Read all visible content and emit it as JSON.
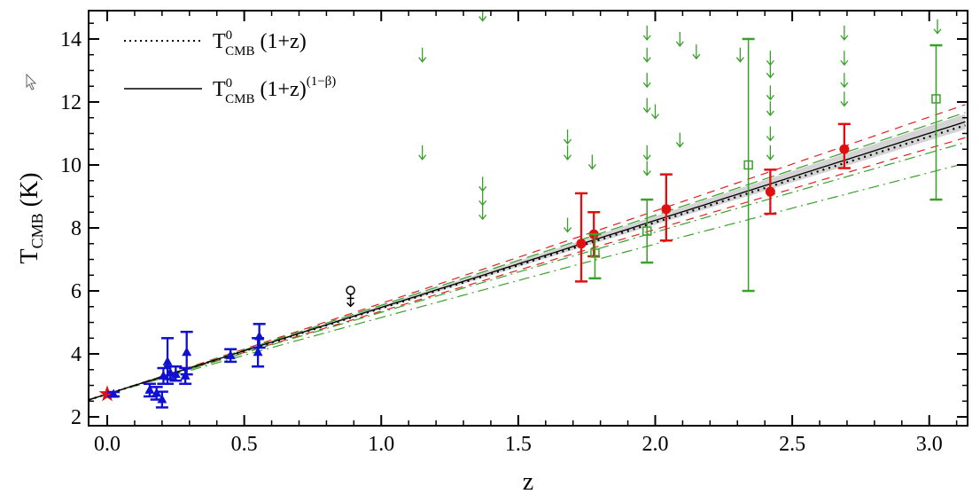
{
  "chart_data": {
    "type": "scatter",
    "xlabel": "z",
    "ylabel": {
      "main": "T",
      "sub": "CMB",
      "unit": " (K)"
    },
    "xlim": [
      -0.068,
      3.14
    ],
    "ylim": [
      1.72,
      14.9
    ],
    "xticks": [
      "0.0",
      "0.5",
      "1.0",
      "1.5",
      "2.0",
      "2.5",
      "3.0"
    ],
    "xtick_values": [
      0,
      0.5,
      1,
      1.5,
      2,
      2.5,
      3
    ],
    "yticks": [
      "2",
      "4",
      "6",
      "8",
      "10",
      "12",
      "14"
    ],
    "ytick_values": [
      2,
      4,
      6,
      8,
      10,
      12,
      14
    ],
    "grid": false,
    "legend_placement": "top-left",
    "legend": [
      {
        "style": "dotted",
        "T": "T",
        "sup": "0",
        "sub": "CMB",
        "expr": " (1+z)",
        "exp": ""
      },
      {
        "style": "solid",
        "T": "T",
        "sup": "0",
        "sub": "CMB",
        "expr": " (1+z)",
        "exp": "(1−β)"
      }
    ],
    "T0": 2.725,
    "beta_fit": -0.007,
    "lines": [
      {
        "kind": "band",
        "beta_low": -0.022,
        "beta_high": 0.008,
        "color": "#c8c8c8"
      },
      {
        "kind": "dashed",
        "beta": -0.04,
        "color": "#e02020"
      },
      {
        "kind": "dashed",
        "beta": 0.025,
        "color": "#e02020"
      },
      {
        "kind": "longdash",
        "beta": -0.025,
        "color": "#3aa02a"
      },
      {
        "kind": "dashdot",
        "beta": 0.035,
        "color": "#3aa02a"
      },
      {
        "kind": "dashdot",
        "beta": 0.08,
        "color": "#3aa02a"
      }
    ],
    "series": [
      {
        "marker": "star",
        "color": "#e01010",
        "points": [
          {
            "x": 0.0,
            "y": 2.725,
            "lo": 2.725,
            "hi": 2.725
          }
        ]
      },
      {
        "marker": "triangle",
        "color": "#1010d0",
        "points": [
          {
            "x": 0.023,
            "y": 2.72,
            "lo": 2.65,
            "hi": 2.79
          },
          {
            "x": 0.155,
            "y": 2.85,
            "lo": 2.65,
            "hi": 3.05
          },
          {
            "x": 0.18,
            "y": 2.75,
            "lo": 2.55,
            "hi": 2.95
          },
          {
            "x": 0.2,
            "y": 2.55,
            "lo": 2.3,
            "hi": 2.8
          },
          {
            "x": 0.205,
            "y": 3.3,
            "lo": 3.05,
            "hi": 3.55
          },
          {
            "x": 0.22,
            "y": 3.75,
            "lo": 3.05,
            "hi": 4.5
          },
          {
            "x": 0.23,
            "y": 3.4,
            "lo": 3.2,
            "hi": 3.6
          },
          {
            "x": 0.25,
            "y": 3.35,
            "lo": 3.15,
            "hi": 3.6
          },
          {
            "x": 0.285,
            "y": 3.3,
            "lo": 3.05,
            "hi": 3.55
          },
          {
            "x": 0.29,
            "y": 4.05,
            "lo": 3.35,
            "hi": 4.7
          },
          {
            "x": 0.45,
            "y": 3.95,
            "lo": 3.75,
            "hi": 4.15
          },
          {
            "x": 0.55,
            "y": 4.05,
            "lo": 3.6,
            "hi": 4.5
          },
          {
            "x": 0.555,
            "y": 4.55,
            "lo": 4.2,
            "hi": 4.95
          }
        ]
      },
      {
        "marker": "circle",
        "color": "#e01010",
        "points": [
          {
            "x": 1.73,
            "y": 7.5,
            "lo": 6.3,
            "hi": 9.1
          },
          {
            "x": 1.776,
            "y": 7.8,
            "lo": 7.1,
            "hi": 8.5
          },
          {
            "x": 2.04,
            "y": 8.6,
            "lo": 7.6,
            "hi": 9.7
          },
          {
            "x": 2.42,
            "y": 9.15,
            "lo": 8.45,
            "hi": 9.85
          },
          {
            "x": 2.69,
            "y": 10.5,
            "lo": 9.9,
            "hi": 11.3
          }
        ]
      },
      {
        "marker": "square",
        "color": "#3aa02a",
        "points": [
          {
            "x": 1.78,
            "y": 7.2,
            "lo": 6.4,
            "hi": 7.8
          },
          {
            "x": 1.97,
            "y": 7.9,
            "lo": 6.9,
            "hi": 8.9
          },
          {
            "x": 2.34,
            "y": 10.0,
            "lo": 6.0,
            "hi": 14.0
          },
          {
            "x": 3.025,
            "y": 12.1,
            "lo": 8.9,
            "hi": 13.8
          }
        ]
      },
      {
        "marker": "venus-upper-limit",
        "color": "#000000",
        "points": [
          {
            "x": 0.888,
            "y": 5.85
          }
        ]
      },
      {
        "marker": "upper-limit-arrow",
        "color": "#3aa02a",
        "points": [
          {
            "x": 1.15,
            "y": 13.5
          },
          {
            "x": 1.15,
            "y": 10.4
          },
          {
            "x": 1.37,
            "y": 14.8
          },
          {
            "x": 1.37,
            "y": 9.4
          },
          {
            "x": 1.37,
            "y": 8.95
          },
          {
            "x": 1.37,
            "y": 8.5
          },
          {
            "x": 1.68,
            "y": 10.9
          },
          {
            "x": 1.68,
            "y": 10.4
          },
          {
            "x": 1.68,
            "y": 8.1
          },
          {
            "x": 1.77,
            "y": 10.1
          },
          {
            "x": 1.97,
            "y": 14.2
          },
          {
            "x": 1.97,
            "y": 13.5
          },
          {
            "x": 1.97,
            "y": 12.7
          },
          {
            "x": 1.97,
            "y": 11.9
          },
          {
            "x": 1.97,
            "y": 10.4
          },
          {
            "x": 1.97,
            "y": 9.9
          },
          {
            "x": 2.0,
            "y": 11.7
          },
          {
            "x": 2.09,
            "y": 14.0
          },
          {
            "x": 2.09,
            "y": 10.8
          },
          {
            "x": 2.15,
            "y": 13.6
          },
          {
            "x": 2.31,
            "y": 13.5
          },
          {
            "x": 2.42,
            "y": 13.4
          },
          {
            "x": 2.42,
            "y": 13.0
          },
          {
            "x": 2.42,
            "y": 12.3
          },
          {
            "x": 2.42,
            "y": 11.8
          },
          {
            "x": 2.42,
            "y": 11.0
          },
          {
            "x": 2.42,
            "y": 10.4
          },
          {
            "x": 2.69,
            "y": 14.2
          },
          {
            "x": 2.69,
            "y": 13.4
          },
          {
            "x": 2.69,
            "y": 12.7
          },
          {
            "x": 2.69,
            "y": 12.1
          },
          {
            "x": 3.03,
            "y": 14.4
          }
        ]
      }
    ]
  }
}
